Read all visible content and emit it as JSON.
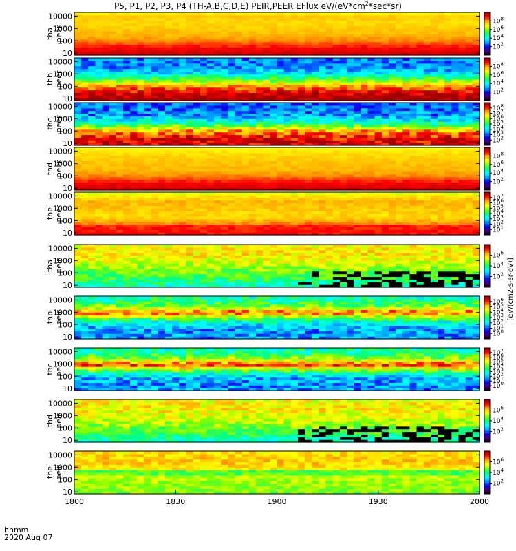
{
  "title": "P5, P1, P2, P3, P4 (TH-A,B,C,D,E) PEIR,PEER EFlux eV/(eV*cm",
  "title_sup": "2",
  "title_tail": "*sec*sr)",
  "colorbar_label": "[eV/(cm2-s-sr-eV)]",
  "footer": {
    "line1": "hhmm",
    "line2": "2020 Aug 07"
  },
  "chart_data": {
    "type": "heatmap",
    "x_axis": {
      "ticks": [
        "1800",
        "1830",
        "1900",
        "1930",
        "2000"
      ],
      "range_hhmm": [
        "1800",
        "2000"
      ]
    },
    "y_scale": "log",
    "y_ticks": [
      "10",
      "100",
      "1000",
      "10000"
    ],
    "colormap": [
      "#000000",
      "#4b0082",
      "#0000ff",
      "#00a0ff",
      "#00ffff",
      "#00ff80",
      "#7fff00",
      "#ffff00",
      "#ffa500",
      "#ff0000",
      "#a00000"
    ],
    "panels": [
      {
        "name": "tha peer",
        "label1": "tha",
        "label2": "peer",
        "ylim": [
          7,
          20000
        ],
        "cbar": [
          "10^2",
          "10^4",
          "10^6",
          "10^8"
        ],
        "bands": [
          [
            10,
            0.95
          ],
          [
            30,
            0.9
          ],
          [
            100,
            0.82
          ],
          [
            300,
            0.78
          ],
          [
            1000,
            0.76
          ],
          [
            3000,
            0.74
          ],
          [
            10000,
            0.76
          ],
          [
            20000,
            0.7
          ]
        ],
        "noise": 0.02,
        "blackfrac": 0
      },
      {
        "name": "thb peer",
        "label1": "thb",
        "label2": "peer",
        "ylim": [
          7,
          20000
        ],
        "cbar": [
          "10^2",
          "10^4",
          "10^6",
          "10^8"
        ],
        "bands": [
          [
            10,
            1.0
          ],
          [
            30,
            0.95
          ],
          [
            100,
            0.8
          ],
          [
            200,
            0.68
          ],
          [
            400,
            0.55
          ],
          [
            800,
            0.45
          ],
          [
            1500,
            0.35
          ],
          [
            3000,
            0.3
          ],
          [
            20000,
            0.28
          ]
        ],
        "noise": 0.08,
        "blackfrac": 0
      },
      {
        "name": "thc peer",
        "label1": "thc",
        "label2": "peer",
        "ylim": [
          7,
          20000
        ],
        "cbar": [
          "10^2",
          "10^3",
          "10^4",
          "10^5",
          "10^6",
          "10^7",
          "10^8"
        ],
        "bands": [
          [
            10,
            0.95
          ],
          [
            30,
            0.92
          ],
          [
            100,
            0.8
          ],
          [
            200,
            0.65
          ],
          [
            400,
            0.5
          ],
          [
            800,
            0.4
          ],
          [
            2000,
            0.3
          ],
          [
            20000,
            0.25
          ]
        ],
        "noise": 0.1,
        "blackfrac": 0
      },
      {
        "name": "thd peer",
        "label1": "thd",
        "label2": "peer",
        "ylim": [
          7,
          20000
        ],
        "cbar": [
          "10^2",
          "10^4",
          "10^6",
          "10^8"
        ],
        "bands": [
          [
            10,
            0.95
          ],
          [
            30,
            0.9
          ],
          [
            100,
            0.82
          ],
          [
            300,
            0.78
          ],
          [
            1000,
            0.77
          ],
          [
            3000,
            0.75
          ],
          [
            10000,
            0.73
          ],
          [
            20000,
            0.68
          ]
        ],
        "noise": 0.02,
        "blackfrac": 0
      },
      {
        "name": "the peer",
        "label1": "the",
        "label2": "peer",
        "ylim": [
          7,
          20000
        ],
        "cbar": [
          "10^1",
          "10^2",
          "10^3",
          "10^4",
          "10^5",
          "10^6",
          "10^7"
        ],
        "bands": [
          [
            10,
            0.9
          ],
          [
            40,
            0.88
          ],
          [
            80,
            0.8
          ],
          [
            200,
            0.74
          ],
          [
            1000,
            0.76
          ],
          [
            4000,
            0.78
          ],
          [
            10000,
            0.72
          ],
          [
            20000,
            0.66
          ]
        ],
        "noise": 0.03,
        "blackfrac": 0
      },
      {
        "name": "tha peir",
        "label1": "tha",
        "label2": "peir",
        "ylim": [
          7,
          20000
        ],
        "cbar": [
          "10^2",
          "10^4",
          "10^6"
        ],
        "bands": [
          [
            10,
            0.45
          ],
          [
            50,
            0.55
          ],
          [
            200,
            0.6
          ],
          [
            1000,
            0.68
          ],
          [
            3000,
            0.72
          ],
          [
            10000,
            0.72
          ],
          [
            20000,
            0.7
          ]
        ],
        "noise": 0.08,
        "blackfrac": 0.45
      },
      {
        "name": "thb peir",
        "label1": "thb",
        "label2": "peir",
        "ylim": [
          7,
          20000
        ],
        "cbar": [
          "10^0",
          "10^1",
          "10^2",
          "10^3",
          "10^4",
          "10^5",
          "10^6"
        ],
        "bands": [
          [
            10,
            0.3
          ],
          [
            60,
            0.32
          ],
          [
            200,
            0.45
          ],
          [
            600,
            0.7
          ],
          [
            1000,
            0.88
          ],
          [
            1500,
            0.75
          ],
          [
            4000,
            0.55
          ],
          [
            20000,
            0.45
          ]
        ],
        "noise": 0.1,
        "blackfrac": 0
      },
      {
        "name": "thc peir",
        "label1": "thc",
        "label2": "peir",
        "ylim": [
          7,
          20000
        ],
        "cbar": [
          "10^0",
          "10^1",
          "10^2",
          "10^3",
          "10^4",
          "10^5",
          "10^6",
          "10^7"
        ],
        "bands": [
          [
            10,
            0.3
          ],
          [
            60,
            0.32
          ],
          [
            200,
            0.45
          ],
          [
            500,
            0.72
          ],
          [
            900,
            0.9
          ],
          [
            1500,
            0.75
          ],
          [
            4000,
            0.55
          ],
          [
            20000,
            0.45
          ]
        ],
        "noise": 0.1,
        "blackfrac": 0
      },
      {
        "name": "thd peir",
        "label1": "thd",
        "label2": "peir",
        "ylim": [
          7,
          20000
        ],
        "cbar": [
          "10^2",
          "10^4",
          "10^6"
        ],
        "bands": [
          [
            10,
            0.45
          ],
          [
            50,
            0.55
          ],
          [
            200,
            0.62
          ],
          [
            1000,
            0.68
          ],
          [
            3000,
            0.72
          ],
          [
            10000,
            0.72
          ],
          [
            20000,
            0.68
          ]
        ],
        "noise": 0.08,
        "blackfrac": 0.4
      },
      {
        "name": "the peir",
        "label1": "the",
        "label2": "peir",
        "ylim": [
          7,
          20000
        ],
        "cbar": [
          "10^2",
          "10^4",
          "10^6"
        ],
        "bands": [
          [
            10,
            0.6
          ],
          [
            60,
            0.62
          ],
          [
            200,
            0.65
          ],
          [
            400,
            0.5
          ],
          [
            800,
            0.72
          ],
          [
            3000,
            0.76
          ],
          [
            10000,
            0.74
          ],
          [
            20000,
            0.72
          ]
        ],
        "noise": 0.06,
        "blackfrac": 0
      }
    ]
  }
}
